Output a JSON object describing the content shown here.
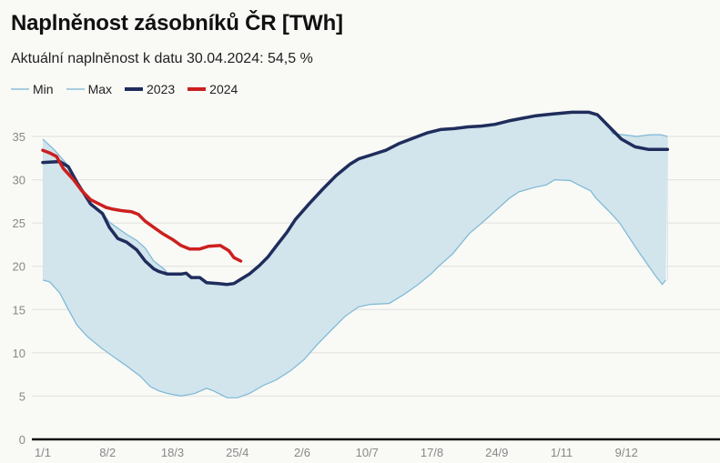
{
  "title": "Naplněnost zásobníků ČR [TWh]",
  "subtitle": "Aktuální naplněnost k datu 30.04.2024: 54,5 %",
  "chart_data": {
    "type": "line",
    "title": "Naplněnost zásobníků ČR [TWh]",
    "subtitle": "Aktuální naplněnost k datu 30.04.2024: 54,5 %",
    "xlabel": "",
    "ylabel": "",
    "ylim": [
      0,
      37.5
    ],
    "xlim_days": [
      0,
      366
    ],
    "yticks": [
      0,
      5,
      10,
      15,
      20,
      25,
      30,
      35
    ],
    "xticks": [
      {
        "day": 0,
        "label": "1/1"
      },
      {
        "day": 38,
        "label": "8/2"
      },
      {
        "day": 76,
        "label": "18/3"
      },
      {
        "day": 114,
        "label": "25/4"
      },
      {
        "day": 152,
        "label": "2/6"
      },
      {
        "day": 190,
        "label": "10/7"
      },
      {
        "day": 228,
        "label": "17/8"
      },
      {
        "day": 266,
        "label": "24/9"
      },
      {
        "day": 304,
        "label": "1/11"
      },
      {
        "day": 342,
        "label": "9/12"
      }
    ],
    "grid": true,
    "legend_position": "top-left",
    "series": [
      {
        "name": "Min",
        "color": "#7ab8d6",
        "points": [
          [
            0,
            18.4
          ],
          [
            4,
            18.2
          ],
          [
            10,
            16.9
          ],
          [
            15,
            15.0
          ],
          [
            20,
            13.2
          ],
          [
            26,
            11.9
          ],
          [
            34,
            10.6
          ],
          [
            41,
            9.6
          ],
          [
            49,
            8.5
          ],
          [
            57,
            7.3
          ],
          [
            63,
            6.1
          ],
          [
            68,
            5.6
          ],
          [
            73,
            5.3
          ],
          [
            81,
            5.0
          ],
          [
            89,
            5.3
          ],
          [
            96,
            5.9
          ],
          [
            100,
            5.6
          ],
          [
            108,
            4.8
          ],
          [
            114,
            4.8
          ],
          [
            121,
            5.3
          ],
          [
            129,
            6.2
          ],
          [
            137,
            6.9
          ],
          [
            145,
            7.9
          ],
          [
            153,
            9.2
          ],
          [
            161,
            11.0
          ],
          [
            169,
            12.6
          ],
          [
            177,
            14.2
          ],
          [
            185,
            15.3
          ],
          [
            192,
            15.6
          ],
          [
            203,
            15.7
          ],
          [
            212,
            16.8
          ],
          [
            220,
            17.9
          ],
          [
            228,
            19.2
          ],
          [
            232,
            20.0
          ],
          [
            240,
            21.4
          ],
          [
            250,
            23.8
          ],
          [
            259,
            25.3
          ],
          [
            268,
            26.9
          ],
          [
            273,
            27.8
          ],
          [
            279,
            28.6
          ],
          [
            288,
            29.1
          ],
          [
            295,
            29.4
          ],
          [
            300,
            30.0
          ],
          [
            309,
            29.9
          ],
          [
            314,
            29.4
          ],
          [
            321,
            28.7
          ],
          [
            324,
            27.9
          ],
          [
            333,
            26.1
          ],
          [
            338,
            25.0
          ],
          [
            344,
            23.2
          ],
          [
            349,
            21.7
          ],
          [
            354,
            20.3
          ],
          [
            359,
            18.9
          ],
          [
            363,
            17.9
          ],
          [
            365,
            18.4
          ]
        ]
      },
      {
        "name": "Max",
        "color": "#7ab8d6",
        "points": [
          [
            0,
            34.7
          ],
          [
            7,
            33.4
          ],
          [
            15,
            31.6
          ],
          [
            20,
            29.9
          ],
          [
            28,
            27.3
          ],
          [
            35,
            26.2
          ],
          [
            39,
            25.1
          ],
          [
            49,
            23.7
          ],
          [
            55,
            23.0
          ],
          [
            60,
            22.1
          ],
          [
            65,
            20.6
          ],
          [
            71,
            19.7
          ],
          [
            73,
            19.2
          ],
          [
            81,
            19.1
          ],
          [
            84,
            19.2
          ],
          [
            87,
            18.8
          ],
          [
            92,
            18.7
          ],
          [
            96,
            18.2
          ],
          [
            103,
            18.0
          ],
          [
            108,
            17.9
          ],
          [
            112,
            18.0
          ],
          [
            116,
            18.5
          ],
          [
            121,
            19.1
          ],
          [
            127,
            20.1
          ],
          [
            132,
            21.1
          ],
          [
            137,
            22.4
          ],
          [
            143,
            23.9
          ],
          [
            148,
            25.4
          ],
          [
            156,
            27.2
          ],
          [
            164,
            28.9
          ],
          [
            172,
            30.5
          ],
          [
            180,
            31.8
          ],
          [
            185,
            32.4
          ],
          [
            193,
            32.9
          ],
          [
            201,
            33.4
          ],
          [
            209,
            34.2
          ],
          [
            217,
            34.8
          ],
          [
            225,
            35.4
          ],
          [
            233,
            35.8
          ],
          [
            241,
            35.9
          ],
          [
            249,
            36.1
          ],
          [
            257,
            36.2
          ],
          [
            265,
            36.4
          ],
          [
            273,
            36.8
          ],
          [
            281,
            37.1
          ],
          [
            289,
            37.4
          ],
          [
            299,
            37.6
          ],
          [
            310,
            37.8
          ],
          [
            320,
            37.8
          ],
          [
            325,
            37.5
          ],
          [
            331,
            36.3
          ],
          [
            334,
            35.3
          ],
          [
            340,
            35.2
          ],
          [
            348,
            35.0
          ],
          [
            356,
            35.2
          ],
          [
            362,
            35.2
          ],
          [
            366,
            35.0
          ]
        ]
      },
      {
        "name": "2023",
        "color": "#1f2d5c",
        "points": [
          [
            0,
            32.0
          ],
          [
            10,
            32.1
          ],
          [
            15,
            31.5
          ],
          [
            20,
            29.7
          ],
          [
            28,
            27.2
          ],
          [
            35,
            26.1
          ],
          [
            39,
            24.5
          ],
          [
            44,
            23.2
          ],
          [
            49,
            22.8
          ],
          [
            55,
            21.9
          ],
          [
            60,
            20.6
          ],
          [
            65,
            19.7
          ],
          [
            68,
            19.4
          ],
          [
            73,
            19.1
          ],
          [
            81,
            19.1
          ],
          [
            84,
            19.2
          ],
          [
            87,
            18.7
          ],
          [
            92,
            18.7
          ],
          [
            96,
            18.1
          ],
          [
            103,
            18.0
          ],
          [
            108,
            17.9
          ],
          [
            112,
            18.0
          ],
          [
            116,
            18.5
          ],
          [
            121,
            19.1
          ],
          [
            127,
            20.1
          ],
          [
            132,
            21.1
          ],
          [
            137,
            22.4
          ],
          [
            143,
            23.9
          ],
          [
            148,
            25.4
          ],
          [
            156,
            27.2
          ],
          [
            164,
            28.9
          ],
          [
            172,
            30.5
          ],
          [
            180,
            31.8
          ],
          [
            185,
            32.4
          ],
          [
            193,
            32.9
          ],
          [
            201,
            33.4
          ],
          [
            209,
            34.2
          ],
          [
            217,
            34.8
          ],
          [
            225,
            35.4
          ],
          [
            233,
            35.8
          ],
          [
            241,
            35.9
          ],
          [
            249,
            36.1
          ],
          [
            257,
            36.2
          ],
          [
            265,
            36.4
          ],
          [
            273,
            36.8
          ],
          [
            281,
            37.1
          ],
          [
            289,
            37.4
          ],
          [
            299,
            37.6
          ],
          [
            310,
            37.8
          ],
          [
            320,
            37.8
          ],
          [
            325,
            37.5
          ],
          [
            331,
            36.3
          ],
          [
            339,
            34.7
          ],
          [
            347,
            33.8
          ],
          [
            355,
            33.5
          ],
          [
            366,
            33.5
          ]
        ]
      },
      {
        "name": "2024",
        "color": "#cc1f1f",
        "points": [
          [
            0,
            33.4
          ],
          [
            4,
            33.1
          ],
          [
            8,
            32.7
          ],
          [
            12,
            31.3
          ],
          [
            18,
            30.0
          ],
          [
            23,
            28.7
          ],
          [
            28,
            27.7
          ],
          [
            34,
            27.1
          ],
          [
            37,
            26.8
          ],
          [
            41,
            26.6
          ],
          [
            47,
            26.4
          ],
          [
            52,
            26.3
          ],
          [
            56,
            26.0
          ],
          [
            60,
            25.2
          ],
          [
            65,
            24.5
          ],
          [
            70,
            23.8
          ],
          [
            76,
            23.1
          ],
          [
            81,
            22.4
          ],
          [
            86,
            22.0
          ],
          [
            92,
            22.0
          ],
          [
            97,
            22.3
          ],
          [
            104,
            22.4
          ],
          [
            109,
            21.8
          ],
          [
            112,
            21.0
          ],
          [
            116,
            20.6
          ]
        ]
      }
    ]
  }
}
